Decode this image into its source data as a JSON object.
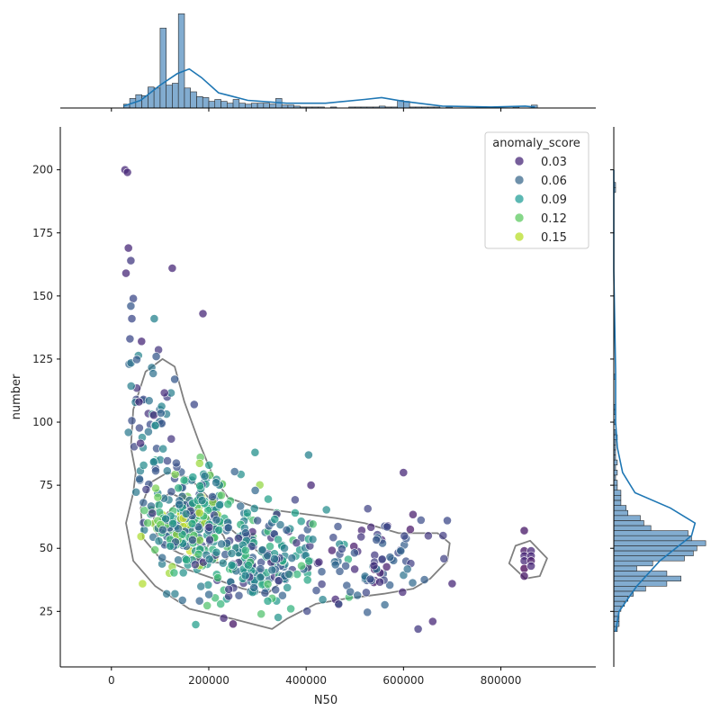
{
  "chart_data": {
    "type": "scatter",
    "subtype": "jointplot",
    "xlabel": "N50",
    "ylabel": "number",
    "xlim": [
      -105000,
      995000
    ],
    "ylim": [
      3,
      217
    ],
    "xticks": [
      0,
      200000,
      400000,
      600000,
      800000
    ],
    "xtick_labels": [
      "0",
      "200000",
      "400000",
      "600000",
      "800000"
    ],
    "yticks": [
      25,
      50,
      75,
      100,
      125,
      150,
      175,
      200
    ],
    "ytick_labels": [
      "25",
      "50",
      "75",
      "100",
      "125",
      "150",
      "175",
      "200"
    ],
    "grid": false,
    "hue": "anomaly_score",
    "legend": {
      "title": "anomaly_score",
      "placement": "top-right",
      "entries": [
        {
          "label": "0.03",
          "color": "#482878"
        },
        {
          "label": "0.06",
          "color": "#3e6b8e"
        },
        {
          "label": "0.09",
          "color": "#26a09a"
        },
        {
          "label": "0.12",
          "color": "#5ec962"
        },
        {
          "label": "0.15",
          "color": "#b8de29"
        }
      ]
    },
    "clusters": [
      {
        "x_center": 160000,
        "y_center": 62,
        "x_spread": 45000,
        "y_spread": 9,
        "n": 260,
        "score_range": [
          0.04,
          0.17
        ]
      },
      {
        "x_center": 300000,
        "y_center": 45,
        "x_spread": 70000,
        "y_spread": 10,
        "n": 230,
        "score_range": [
          0.02,
          0.13
        ]
      },
      {
        "x_center": 80000,
        "y_center": 95,
        "x_spread": 25000,
        "y_spread": 18,
        "n": 60,
        "score_range": [
          0.02,
          0.09
        ]
      },
      {
        "x_center": 540000,
        "y_center": 45,
        "x_spread": 60000,
        "y_spread": 9,
        "n": 80,
        "score_range": [
          0.01,
          0.07
        ]
      }
    ],
    "outlier_points": [
      {
        "x": 28000,
        "y": 200,
        "score": 0.02
      },
      {
        "x": 33000,
        "y": 199,
        "score": 0.02
      },
      {
        "x": 35000,
        "y": 169,
        "score": 0.02
      },
      {
        "x": 40000,
        "y": 164,
        "score": 0.03
      },
      {
        "x": 30000,
        "y": 159,
        "score": 0.02
      },
      {
        "x": 125000,
        "y": 161,
        "score": 0.02
      },
      {
        "x": 188000,
        "y": 143,
        "score": 0.02
      },
      {
        "x": 45000,
        "y": 149,
        "score": 0.04
      },
      {
        "x": 40000,
        "y": 146,
        "score": 0.05
      },
      {
        "x": 42000,
        "y": 141,
        "score": 0.04
      },
      {
        "x": 88000,
        "y": 141,
        "score": 0.08
      },
      {
        "x": 38000,
        "y": 133,
        "score": 0.04
      },
      {
        "x": 62000,
        "y": 132,
        "score": 0.02
      },
      {
        "x": 92000,
        "y": 126,
        "score": 0.05
      },
      {
        "x": 130000,
        "y": 117,
        "score": 0.05
      },
      {
        "x": 170000,
        "y": 107,
        "score": 0.04
      },
      {
        "x": 600000,
        "y": 80,
        "score": 0.02
      },
      {
        "x": 410000,
        "y": 75,
        "score": 0.02
      },
      {
        "x": 405000,
        "y": 87,
        "score": 0.08
      },
      {
        "x": 295000,
        "y": 88,
        "score": 0.09
      },
      {
        "x": 700000,
        "y": 36,
        "score": 0.02
      },
      {
        "x": 630000,
        "y": 18,
        "score": 0.03
      },
      {
        "x": 660000,
        "y": 21,
        "score": 0.02
      },
      {
        "x": 250000,
        "y": 20,
        "score": 0.01
      },
      {
        "x": 690000,
        "y": 61,
        "score": 0.04
      },
      {
        "x": 848000,
        "y": 57,
        "score": 0.01
      },
      {
        "x": 848000,
        "y": 49,
        "score": 0.01
      },
      {
        "x": 848000,
        "y": 47,
        "score": 0.02
      },
      {
        "x": 848000,
        "y": 45,
        "score": 0.02
      },
      {
        "x": 848000,
        "y": 42,
        "score": 0.0
      },
      {
        "x": 848000,
        "y": 39,
        "score": 0.01
      },
      {
        "x": 862000,
        "y": 49,
        "score": 0.02
      },
      {
        "x": 862000,
        "y": 47,
        "score": 0.02
      },
      {
        "x": 862000,
        "y": 45,
        "score": 0.01
      },
      {
        "x": 862000,
        "y": 43,
        "score": 0.02
      }
    ],
    "kde_contours": [
      [
        [
          105000,
          125
        ],
        [
          70000,
          120
        ],
        [
          45000,
          105
        ],
        [
          40000,
          90
        ],
        [
          50000,
          80
        ],
        [
          45000,
          72
        ],
        [
          30000,
          60
        ],
        [
          45000,
          45
        ],
        [
          90000,
          35
        ],
        [
          160000,
          26
        ],
        [
          250000,
          22
        ],
        [
          330000,
          18
        ],
        [
          360000,
          22
        ],
        [
          420000,
          28
        ],
        [
          480000,
          30
        ],
        [
          560000,
          32
        ],
        [
          620000,
          34
        ],
        [
          655000,
          38
        ],
        [
          690000,
          45
        ],
        [
          695000,
          52
        ],
        [
          670000,
          56
        ],
        [
          590000,
          56
        ],
        [
          520000,
          60
        ],
        [
          460000,
          62
        ],
        [
          380000,
          64
        ],
        [
          300000,
          66
        ],
        [
          240000,
          70
        ],
        [
          210000,
          78
        ],
        [
          180000,
          92
        ],
        [
          150000,
          108
        ],
        [
          130000,
          122
        ],
        [
          105000,
          125
        ]
      ],
      [
        [
          115000,
          80
        ],
        [
          80000,
          76
        ],
        [
          60000,
          66
        ],
        [
          65000,
          54
        ],
        [
          100000,
          46
        ],
        [
          150000,
          42
        ],
        [
          210000,
          38
        ],
        [
          270000,
          34
        ],
        [
          320000,
          32
        ],
        [
          350000,
          37
        ],
        [
          330000,
          44
        ],
        [
          280000,
          52
        ],
        [
          230000,
          60
        ],
        [
          200000,
          70
        ],
        [
          160000,
          78
        ],
        [
          115000,
          80
        ]
      ],
      [
        [
          120000,
          72
        ],
        [
          95000,
          68
        ],
        [
          85000,
          60
        ],
        [
          100000,
          52
        ],
        [
          140000,
          48
        ],
        [
          190000,
          45
        ],
        [
          230000,
          44
        ],
        [
          245000,
          48
        ],
        [
          230000,
          55
        ],
        [
          200000,
          62
        ],
        [
          165000,
          68
        ],
        [
          120000,
          72
        ]
      ],
      [
        [
          130000,
          67
        ],
        [
          110000,
          63
        ],
        [
          108000,
          57
        ],
        [
          125000,
          52
        ],
        [
          160000,
          50
        ],
        [
          195000,
          50
        ],
        [
          208000,
          54
        ],
        [
          190000,
          60
        ],
        [
          160000,
          65
        ],
        [
          130000,
          67
        ]
      ],
      [
        [
          140000,
          63
        ],
        [
          125000,
          60
        ],
        [
          130000,
          56
        ],
        [
          155000,
          55
        ],
        [
          175000,
          57
        ],
        [
          165000,
          62
        ],
        [
          140000,
          63
        ]
      ],
      [
        [
          830000,
          51
        ],
        [
          860000,
          53
        ],
        [
          895000,
          46
        ],
        [
          880000,
          39
        ],
        [
          850000,
          38
        ],
        [
          817000,
          44
        ],
        [
          830000,
          51
        ]
      ]
    ],
    "marginal_x": {
      "bin_edges_start": 25000,
      "bin_width": 12500,
      "counts": [
        4,
        10,
        14,
        13,
        22,
        21,
        84,
        24,
        26,
        99,
        21,
        17,
        12,
        11,
        7,
        9,
        7,
        5,
        9,
        5,
        4,
        5,
        5,
        5,
        4,
        10,
        3,
        3,
        2,
        1,
        1,
        1,
        1,
        0,
        1,
        0,
        0,
        1,
        1,
        1,
        1,
        1,
        2,
        1,
        1,
        8,
        7,
        1,
        1,
        1,
        1,
        1,
        0,
        1,
        0,
        0,
        0,
        0,
        1,
        1,
        0,
        0,
        0,
        0,
        1,
        0,
        0,
        3
      ],
      "kde": [
        [
          25000,
          2
        ],
        [
          60000,
          8
        ],
        [
          100000,
          24
        ],
        [
          135000,
          36
        ],
        [
          160000,
          41
        ],
        [
          185000,
          32
        ],
        [
          220000,
          16
        ],
        [
          280000,
          8
        ],
        [
          360000,
          5
        ],
        [
          440000,
          5
        ],
        [
          520000,
          9
        ],
        [
          555000,
          11
        ],
        [
          600000,
          7
        ],
        [
          680000,
          2
        ],
        [
          780000,
          1
        ],
        [
          850000,
          2
        ],
        [
          870000,
          1
        ]
      ],
      "ylim": [
        0,
        104
      ]
    },
    "marginal_y": {
      "bin_edges_start": 17,
      "bin_width": 2,
      "counts": [
        2,
        3,
        3,
        3,
        4,
        6,
        8,
        11,
        18,
        30,
        38,
        30,
        13,
        22,
        40,
        45,
        47,
        52,
        44,
        42,
        21,
        17,
        15,
        8,
        7,
        4,
        4,
        4,
        2,
        2,
        1,
        2,
        1,
        2,
        1,
        1,
        1,
        1,
        2,
        1,
        0,
        1,
        0,
        1,
        1,
        0,
        0,
        0,
        0,
        0,
        1,
        0,
        0,
        0,
        0,
        0,
        0,
        0,
        0,
        0,
        0,
        0,
        0,
        0,
        0,
        0,
        0,
        0,
        0,
        0,
        0,
        0,
        0,
        0,
        0,
        0,
        0,
        0,
        0,
        0,
        0,
        0,
        0,
        0,
        0,
        0,
        0,
        1,
        1
      ],
      "kde": [
        [
          17,
          1
        ],
        [
          25,
          3
        ],
        [
          35,
          13
        ],
        [
          45,
          26
        ],
        [
          55,
          44
        ],
        [
          60,
          46
        ],
        [
          66,
          32
        ],
        [
          72,
          12
        ],
        [
          80,
          5
        ],
        [
          90,
          2
        ],
        [
          100,
          1
        ],
        [
          120,
          1
        ],
        [
          160,
          0
        ],
        [
          200,
          0
        ]
      ],
      "xlim": [
        0,
        55
      ]
    }
  }
}
